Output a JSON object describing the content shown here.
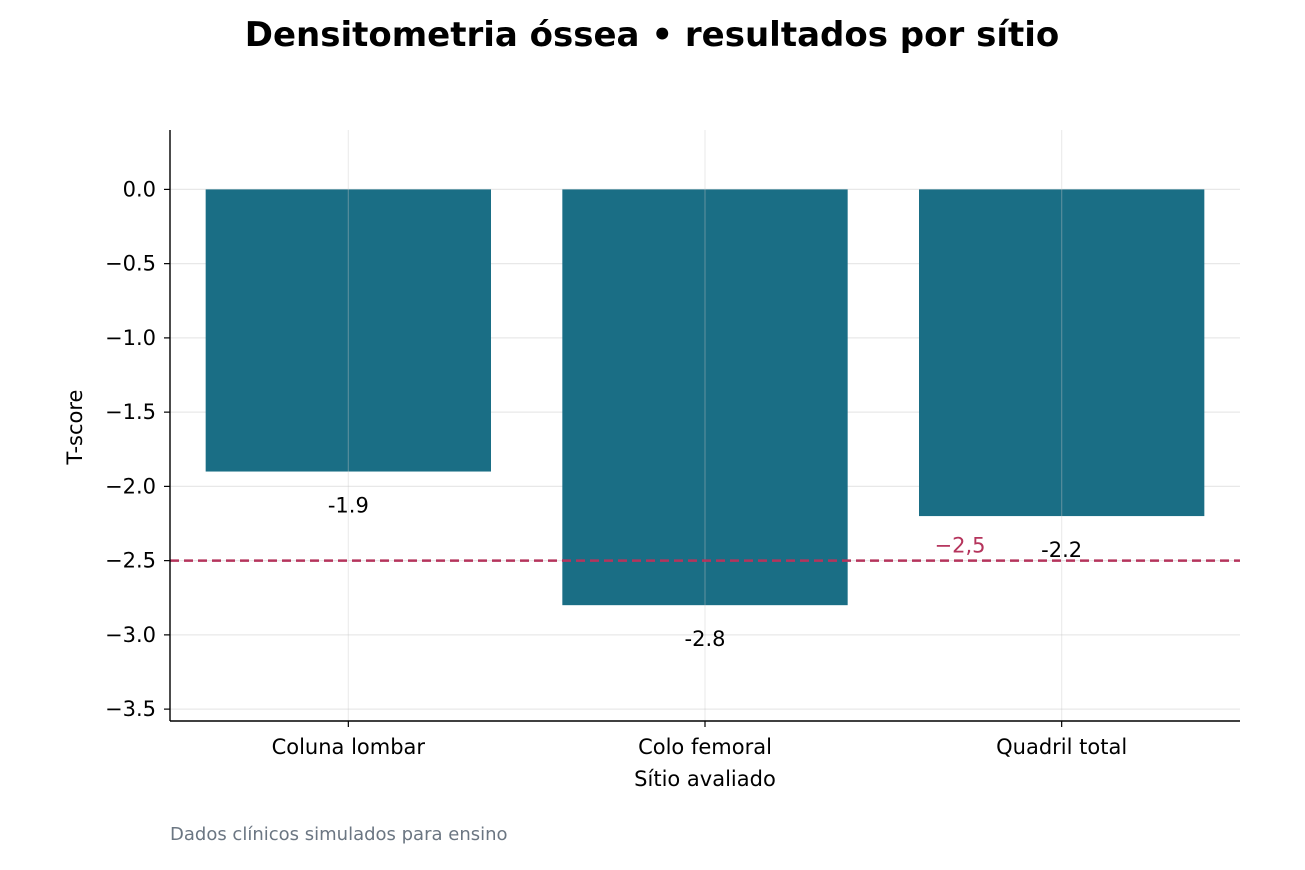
{
  "chart_data": {
    "type": "bar",
    "title": "Densitometria óssea • resultados por sítio",
    "xlabel": "Sítio avaliado",
    "ylabel": "T-score",
    "categories": [
      "Coluna lombar",
      "Colo femoral",
      "Quadril total"
    ],
    "values": [
      -1.9,
      -2.8,
      -2.2
    ],
    "data_labels": [
      "-1.9",
      "-2.8",
      "-2.2"
    ],
    "ylim": [
      -3.58,
      0.4
    ],
    "yticks": [
      0.0,
      -0.5,
      -1.0,
      -1.5,
      -2.0,
      -2.5,
      -3.0,
      -3.5
    ],
    "ytick_labels": [
      "0.0",
      "−0.5",
      "−1.0",
      "−1.5",
      "−2.0",
      "−2.5",
      "−3.0",
      "−3.5"
    ],
    "grid": true,
    "reference_line": {
      "value": -2.5,
      "label": "−2,5",
      "style": "dashed",
      "color": "#b5345c"
    },
    "bar_color": "#1a6e85",
    "caption": "Dados clínicos simulados para ensino"
  }
}
